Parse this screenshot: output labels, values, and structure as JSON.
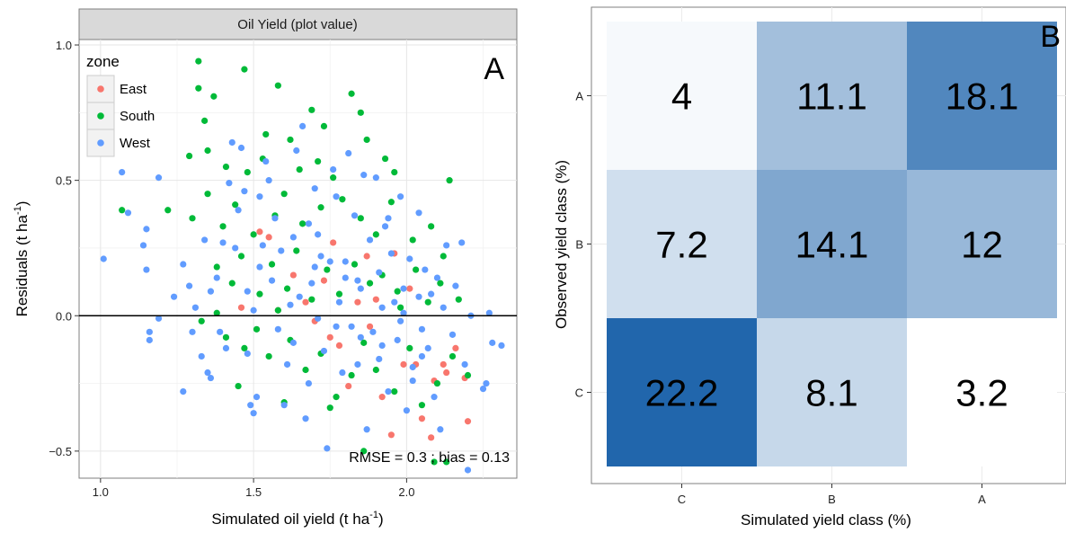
{
  "chart_data": [
    {
      "panel": "A",
      "type": "scatter",
      "strip_title": "Oil Yield (plot value)",
      "xlabel": "Simulated oil yield (t ha",
      "xlabel_sup": "-1",
      "xlabel_end": ")",
      "ylabel": "Residuals (t ha",
      "ylabel_sup": "-1",
      "ylabel_end": ")",
      "xlim": [
        0.93,
        2.36
      ],
      "ylim": [
        -0.6,
        1.02
      ],
      "xticks": [
        1.0,
        1.5,
        2.0
      ],
      "xtick_labels": [
        "1.0",
        "1.5",
        "2.0"
      ],
      "yticks": [
        -0.5,
        0.0,
        0.5,
        1.0
      ],
      "ytick_labels": [
        "−0.5",
        "0.0",
        "0.5",
        "1.0"
      ],
      "hline": 0,
      "grid": true,
      "legend": {
        "title": "zone",
        "position": "top-left",
        "entries": [
          {
            "name": "East",
            "color": "#F8766D"
          },
          {
            "name": "South",
            "color": "#00BA38"
          },
          {
            "name": "West",
            "color": "#619CFF"
          }
        ]
      },
      "annotation": "RMSE = 0.3 ; bias = 0.13",
      "panel_label": "A",
      "series": [
        {
          "name": "East",
          "color": "#F8766D",
          "points": [
            [
              1.52,
              0.31
            ],
            [
              1.55,
              0.29
            ],
            [
              1.67,
              0.05
            ],
            [
              1.75,
              -0.08
            ],
            [
              1.76,
              0.27
            ],
            [
              1.78,
              -0.11
            ],
            [
              1.84,
              0.05
            ],
            [
              1.88,
              -0.04
            ],
            [
              1.92,
              -0.3
            ],
            [
              1.96,
              0.23
            ],
            [
              2.03,
              -0.18
            ],
            [
              2.05,
              -0.38
            ],
            [
              2.08,
              -0.45
            ],
            [
              2.13,
              -0.21
            ],
            [
              2.16,
              -0.12
            ],
            [
              2.2,
              -0.39
            ],
            [
              1.46,
              0.03
            ],
            [
              1.63,
              0.15
            ],
            [
              1.73,
              0.13
            ],
            [
              1.9,
              0.06
            ],
            [
              1.99,
              -0.18
            ],
            [
              2.01,
              0.1
            ],
            [
              2.09,
              -0.24
            ],
            [
              2.19,
              -0.23
            ],
            [
              1.58,
              0.02
            ],
            [
              1.81,
              -0.26
            ],
            [
              1.95,
              -0.44
            ],
            [
              2.12,
              -0.18
            ],
            [
              1.7,
              -0.02
            ],
            [
              1.87,
              0.22
            ]
          ]
        },
        {
          "name": "South",
          "color": "#00BA38",
          "points": [
            [
              1.32,
              0.94
            ],
            [
              1.32,
              0.84
            ],
            [
              1.37,
              0.81
            ],
            [
              1.47,
              0.91
            ],
            [
              1.58,
              0.85
            ],
            [
              1.69,
              0.76
            ],
            [
              1.82,
              0.82
            ],
            [
              1.85,
              0.75
            ],
            [
              1.87,
              0.65
            ],
            [
              1.73,
              0.7
            ],
            [
              1.62,
              0.65
            ],
            [
              1.54,
              0.67
            ],
            [
              1.34,
              0.72
            ],
            [
              1.35,
              0.61
            ],
            [
              1.29,
              0.59
            ],
            [
              1.41,
              0.55
            ],
            [
              1.48,
              0.53
            ],
            [
              1.53,
              0.58
            ],
            [
              1.65,
              0.54
            ],
            [
              1.71,
              0.57
            ],
            [
              1.76,
              0.51
            ],
            [
              1.93,
              0.58
            ],
            [
              1.96,
              0.53
            ],
            [
              2.14,
              0.5
            ],
            [
              1.07,
              0.39
            ],
            [
              1.22,
              0.39
            ],
            [
              1.3,
              0.36
            ],
            [
              1.35,
              0.45
            ],
            [
              1.4,
              0.33
            ],
            [
              1.44,
              0.41
            ],
            [
              1.5,
              0.3
            ],
            [
              1.57,
              0.37
            ],
            [
              1.6,
              0.45
            ],
            [
              1.66,
              0.34
            ],
            [
              1.72,
              0.4
            ],
            [
              1.79,
              0.43
            ],
            [
              1.85,
              0.36
            ],
            [
              1.9,
              0.3
            ],
            [
              1.95,
              0.42
            ],
            [
              2.02,
              0.28
            ],
            [
              2.08,
              0.33
            ],
            [
              2.12,
              0.22
            ],
            [
              1.38,
              0.18
            ],
            [
              1.43,
              0.12
            ],
            [
              1.46,
              0.22
            ],
            [
              1.52,
              0.08
            ],
            [
              1.56,
              0.19
            ],
            [
              1.61,
              0.1
            ],
            [
              1.64,
              0.24
            ],
            [
              1.69,
              0.06
            ],
            [
              1.74,
              0.17
            ],
            [
              1.78,
              0.08
            ],
            [
              1.83,
              0.19
            ],
            [
              1.88,
              0.12
            ],
            [
              1.92,
              0.15
            ],
            [
              1.97,
              0.09
            ],
            [
              2.03,
              0.17
            ],
            [
              2.07,
              0.05
            ],
            [
              2.11,
              0.12
            ],
            [
              1.33,
              -0.02
            ],
            [
              1.41,
              -0.08
            ],
            [
              1.47,
              -0.12
            ],
            [
              1.51,
              -0.05
            ],
            [
              1.55,
              -0.15
            ],
            [
              1.62,
              -0.09
            ],
            [
              1.67,
              -0.2
            ],
            [
              1.72,
              -0.14
            ],
            [
              1.77,
              -0.3
            ],
            [
              1.82,
              -0.22
            ],
            [
              1.86,
              -0.1
            ],
            [
              1.9,
              -0.2
            ],
            [
              1.96,
              -0.28
            ],
            [
              2.01,
              -0.12
            ],
            [
              2.05,
              -0.33
            ],
            [
              2.1,
              -0.25
            ],
            [
              2.15,
              -0.15
            ],
            [
              2.2,
              -0.22
            ],
            [
              1.75,
              -0.34
            ],
            [
              1.86,
              -0.5
            ],
            [
              2.09,
              -0.54
            ],
            [
              2.13,
              -0.54
            ],
            [
              1.45,
              -0.26
            ],
            [
              1.6,
              -0.32
            ],
            [
              1.38,
              0.01
            ],
            [
              1.58,
              0.02
            ],
            [
              1.98,
              0.03
            ],
            [
              2.17,
              0.06
            ]
          ]
        },
        {
          "name": "West",
          "color": "#619CFF",
          "points": [
            [
              1.01,
              0.21
            ],
            [
              1.07,
              0.53
            ],
            [
              1.09,
              0.38
            ],
            [
              1.14,
              0.26
            ],
            [
              1.15,
              0.17
            ],
            [
              1.15,
              0.32
            ],
            [
              1.16,
              -0.06
            ],
            [
              1.16,
              -0.09
            ],
            [
              1.19,
              0.51
            ],
            [
              1.19,
              -0.01
            ],
            [
              1.24,
              0.07
            ],
            [
              1.27,
              -0.28
            ],
            [
              1.27,
              0.19
            ],
            [
              1.29,
              0.11
            ],
            [
              1.3,
              -0.06
            ],
            [
              1.31,
              0.03
            ],
            [
              1.33,
              -0.15
            ],
            [
              1.35,
              -0.21
            ],
            [
              1.36,
              -0.23
            ],
            [
              1.36,
              0.09
            ],
            [
              1.38,
              0.14
            ],
            [
              1.4,
              0.27
            ],
            [
              1.42,
              0.49
            ],
            [
              1.43,
              0.64
            ],
            [
              1.45,
              0.39
            ],
            [
              1.46,
              0.62
            ],
            [
              1.47,
              0.46
            ],
            [
              1.48,
              -0.14
            ],
            [
              1.49,
              -0.33
            ],
            [
              1.5,
              -0.36
            ],
            [
              1.51,
              -0.3
            ],
            [
              1.52,
              0.18
            ],
            [
              1.53,
              0.26
            ],
            [
              1.54,
              0.57
            ],
            [
              1.55,
              0.5
            ],
            [
              1.57,
              0.36
            ],
            [
              1.59,
              0.24
            ],
            [
              1.6,
              -0.33
            ],
            [
              1.61,
              -0.18
            ],
            [
              1.62,
              0.04
            ],
            [
              1.63,
              0.29
            ],
            [
              1.64,
              0.61
            ],
            [
              1.66,
              0.7
            ],
            [
              1.67,
              -0.38
            ],
            [
              1.68,
              -0.25
            ],
            [
              1.69,
              0.12
            ],
            [
              1.7,
              0.47
            ],
            [
              1.71,
              0.3
            ],
            [
              1.72,
              0.22
            ],
            [
              1.73,
              -0.13
            ],
            [
              1.74,
              -0.49
            ],
            [
              1.75,
              0.2
            ],
            [
              1.76,
              0.54
            ],
            [
              1.77,
              0.44
            ],
            [
              1.79,
              -0.21
            ],
            [
              1.8,
              0.14
            ],
            [
              1.81,
              0.6
            ],
            [
              1.82,
              -0.04
            ],
            [
              1.83,
              0.37
            ],
            [
              1.84,
              -0.18
            ],
            [
              1.85,
              0.1
            ],
            [
              1.86,
              0.52
            ],
            [
              1.87,
              -0.42
            ],
            [
              1.88,
              0.28
            ],
            [
              1.89,
              -0.06
            ],
            [
              1.9,
              0.51
            ],
            [
              1.91,
              0.16
            ],
            [
              1.92,
              -0.11
            ],
            [
              1.93,
              0.33
            ],
            [
              1.94,
              -0.28
            ],
            [
              1.95,
              0.23
            ],
            [
              1.96,
              0.05
            ],
            [
              1.97,
              -0.09
            ],
            [
              1.98,
              0.44
            ],
            [
              1.99,
              0.01
            ],
            [
              2.0,
              -0.35
            ],
            [
              2.01,
              0.21
            ],
            [
              2.02,
              -0.19
            ],
            [
              2.04,
              0.38
            ],
            [
              2.05,
              -0.05
            ],
            [
              2.06,
              0.17
            ],
            [
              2.07,
              -0.12
            ],
            [
              2.08,
              0.08
            ],
            [
              2.09,
              -0.3
            ],
            [
              2.1,
              0.14
            ],
            [
              2.11,
              -0.42
            ],
            [
              2.12,
              0.03
            ],
            [
              2.13,
              0.26
            ],
            [
              2.15,
              -0.07
            ],
            [
              2.16,
              0.11
            ],
            [
              2.18,
              0.27
            ],
            [
              2.19,
              -0.18
            ],
            [
              2.21,
              0.0
            ],
            [
              2.25,
              -0.27
            ],
            [
              2.26,
              -0.25
            ],
            [
              2.27,
              0.01
            ],
            [
              2.28,
              -0.1
            ],
            [
              2.31,
              -0.11
            ],
            [
              2.2,
              -0.57
            ],
            [
              1.44,
              0.25
            ],
            [
              1.52,
              0.44
            ],
            [
              1.58,
              -0.05
            ],
            [
              1.65,
              0.07
            ],
            [
              1.71,
              -0.01
            ],
            [
              1.78,
              0.05
            ],
            [
              1.85,
              -0.08
            ],
            [
              1.92,
              0.03
            ],
            [
              1.99,
              0.1
            ],
            [
              2.05,
              -0.15
            ],
            [
              1.48,
              0.09
            ],
            [
              1.56,
              0.13
            ],
            [
              1.63,
              -0.1
            ],
            [
              1.7,
              0.18
            ],
            [
              1.77,
              -0.04
            ],
            [
              1.84,
              0.13
            ],
            [
              1.91,
              -0.16
            ],
            [
              1.98,
              -0.02
            ],
            [
              2.04,
              0.07
            ],
            [
              1.39,
              -0.06
            ],
            [
              1.34,
              0.28
            ],
            [
              1.41,
              -0.12
            ],
            [
              1.5,
              0.02
            ],
            [
              1.68,
              0.34
            ],
            [
              1.8,
              0.2
            ],
            [
              1.94,
              0.36
            ],
            [
              2.02,
              -0.24
            ]
          ]
        }
      ]
    },
    {
      "panel": "B",
      "type": "heatmap",
      "xlabel": "Simulated yield class (%)",
      "ylabel": "Observed yield class (%)",
      "x_categories": [
        "C",
        "B",
        "A"
      ],
      "y_categories": [
        "A",
        "B",
        "C"
      ],
      "cells": [
        [
          4,
          11.1,
          18.1
        ],
        [
          7.2,
          14.1,
          12
        ],
        [
          22.2,
          8.1,
          3.2
        ]
      ],
      "cell_labels": [
        [
          "4",
          "11.1",
          "18.1"
        ],
        [
          "7.2",
          "14.1",
          "12"
        ],
        [
          "22.2",
          "8.1",
          "3.2"
        ]
      ],
      "color_low": "#ffffff",
      "color_high": "#2166ac",
      "panel_label": "B"
    }
  ]
}
